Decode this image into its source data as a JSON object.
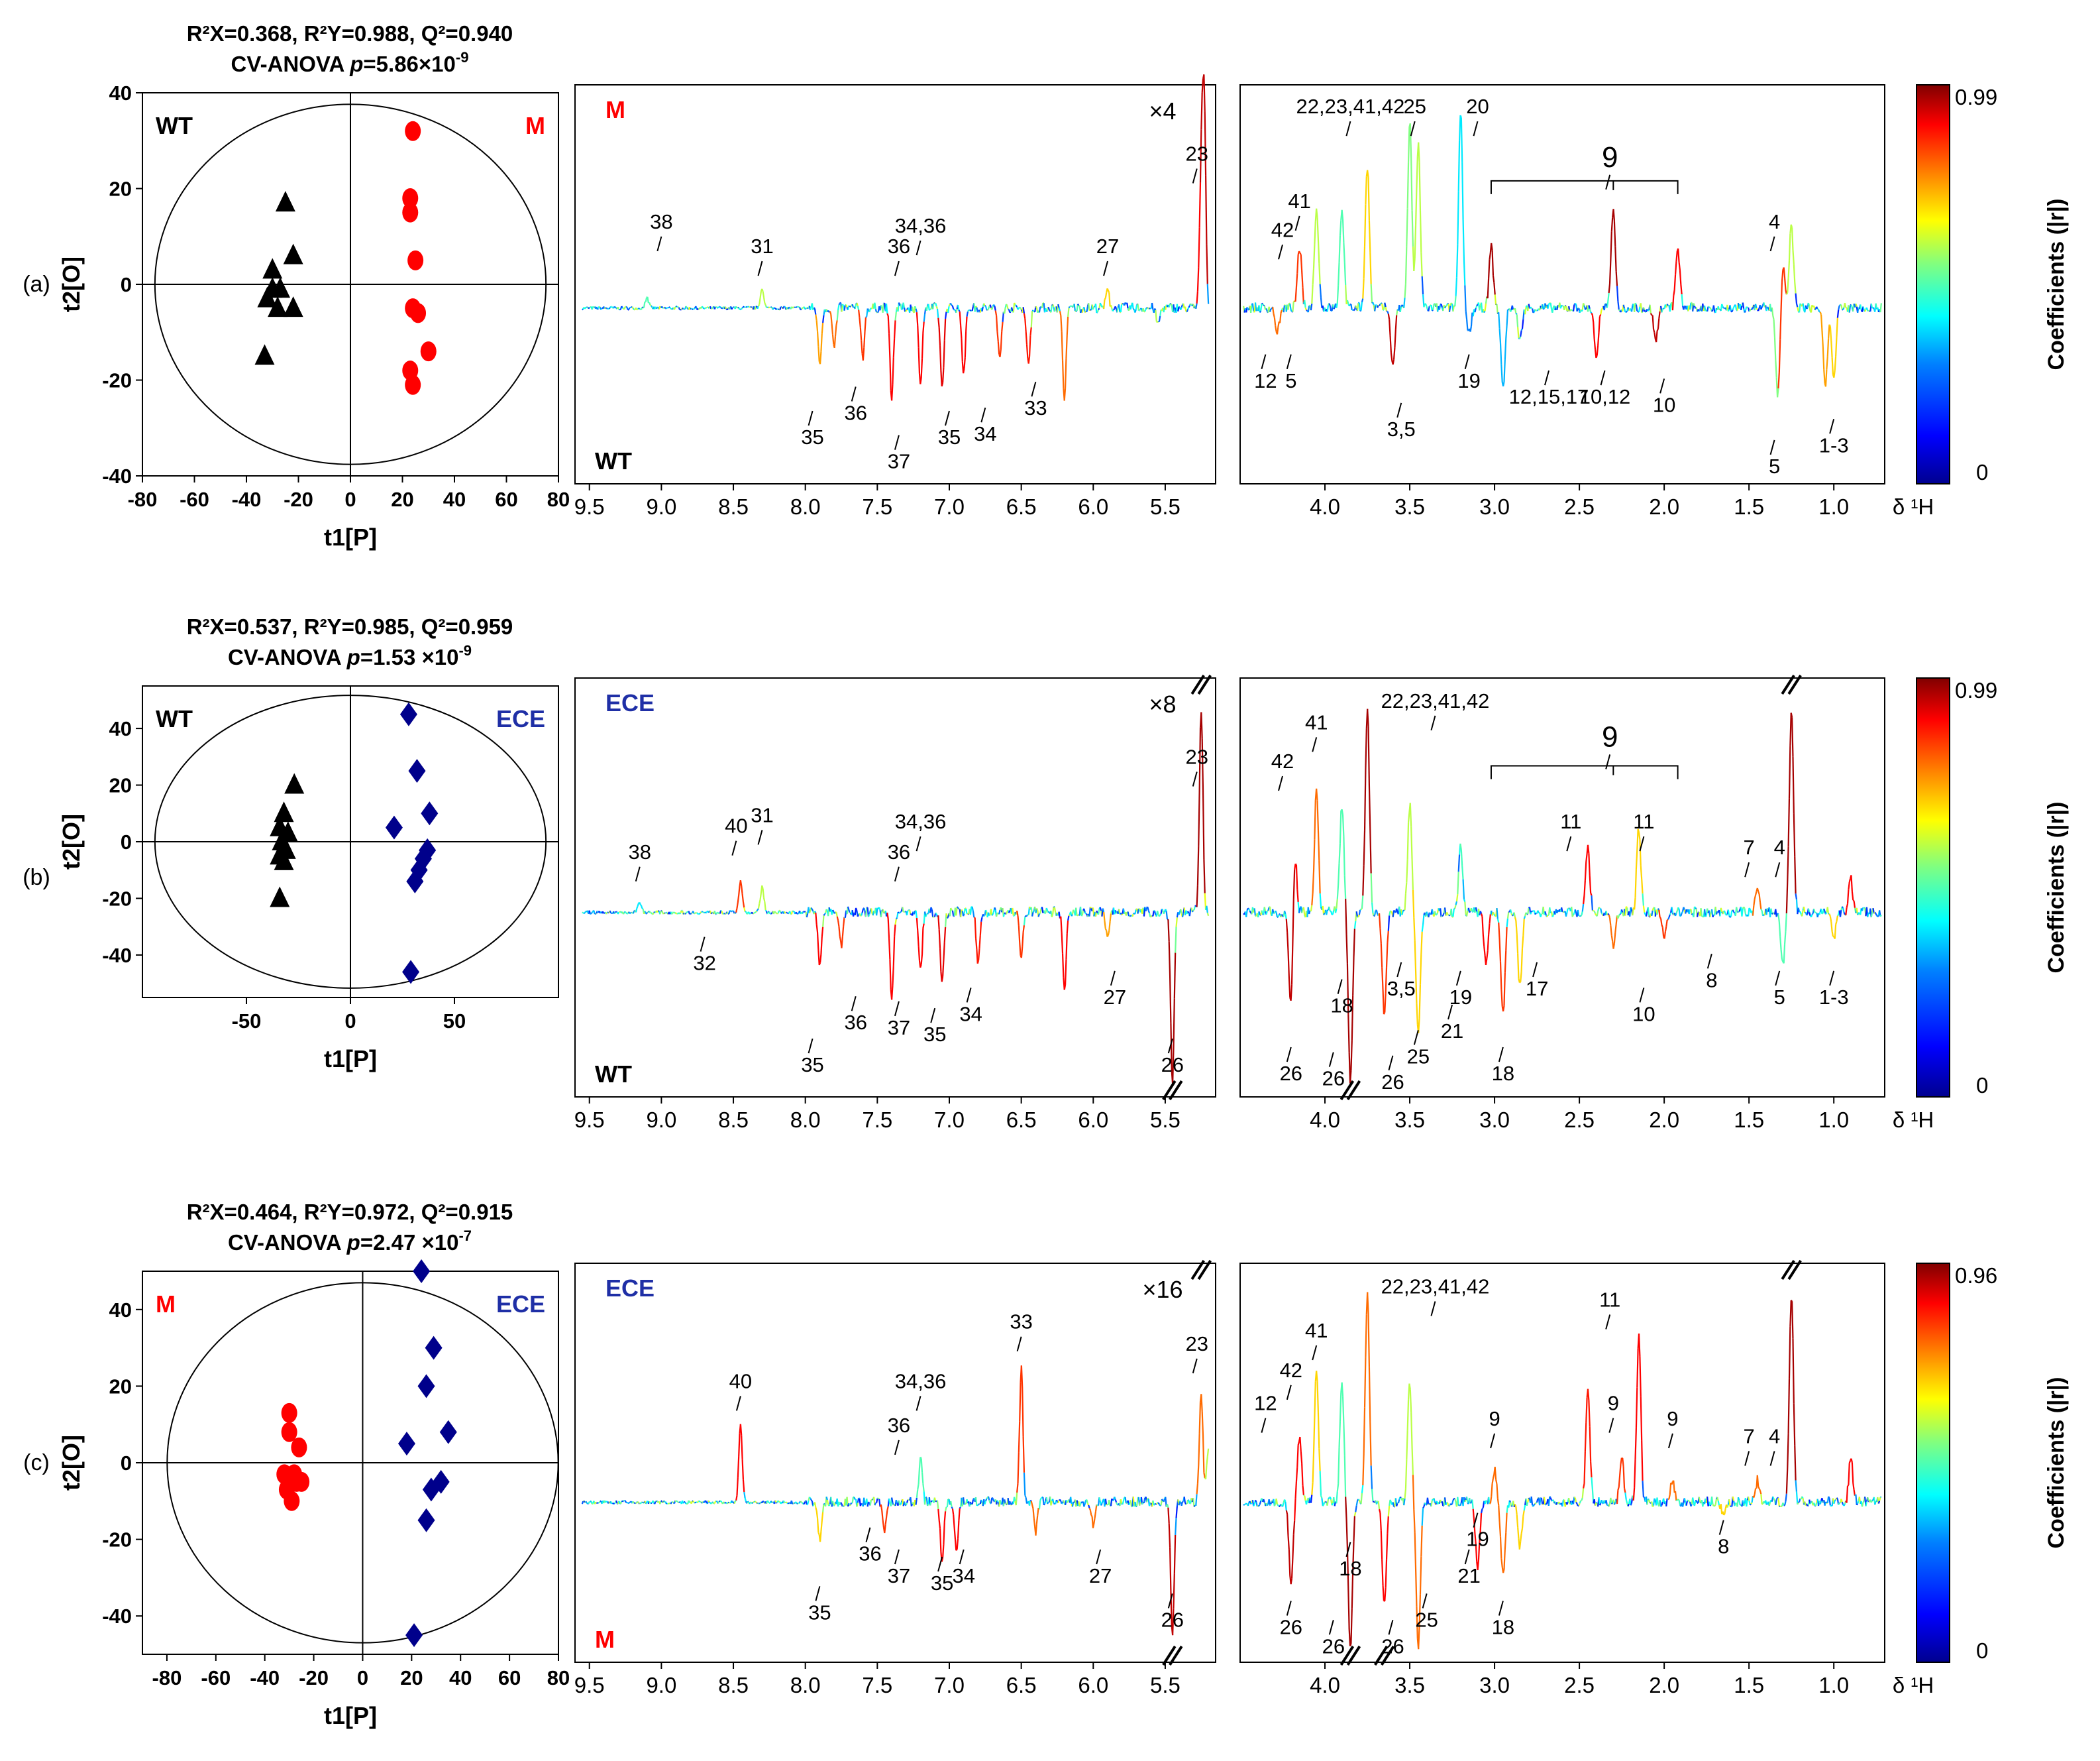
{
  "colors": {
    "group_WT": "#000000",
    "group_M": "#ff0000",
    "group_ECE": "#00008b",
    "label_M": "#ff0000",
    "label_ECE": "#1f2fa6",
    "colorbar_stops": [
      "#00008f",
      "#0000ff",
      "#0080ff",
      "#00ffff",
      "#80ff80",
      "#ffff00",
      "#ff8000",
      "#ff0000",
      "#800000"
    ]
  },
  "colorbar_title": "Coefficients (|r|)",
  "x_axis_label": "δ ¹H",
  "panels": [
    {
      "id": "a",
      "label": "(a)",
      "stats_line1": "R²X=0.368, R²Y=0.988, Q²=0.940",
      "stats_line2_prefix": "CV-ANOVA ",
      "stats_p": "p",
      "stats_line2_mid": "=5.86×10",
      "stats_exp": "-9",
      "score_plot": {
        "xlabel": "t1[P]",
        "ylabel": "t2[O]",
        "xticks": [
          "-80",
          "-60",
          "-40",
          "-20",
          "0",
          "20",
          "40",
          "60",
          "80"
        ],
        "yticks": [
          "40",
          "20",
          "0",
          "-20",
          "-40"
        ],
        "group_left": "WT",
        "group_right": "M",
        "group_left_color": "#000000",
        "group_right_color": "#ff0000"
      },
      "loadings": {
        "top_group": "M",
        "top_color": "#ff0000",
        "bottom_group": "WT",
        "bottom_color": "#000000",
        "scale": "×4",
        "colorbar_max": "0.99",
        "colorbar_min": "0"
      }
    },
    {
      "id": "b",
      "label": "(b)",
      "stats_line1": "R²X=0.537, R²Y=0.985, Q²=0.959",
      "stats_line2_prefix": "CV-ANOVA ",
      "stats_p": "p",
      "stats_line2_mid": "=1.53 ×10",
      "stats_exp": "-9",
      "score_plot": {
        "xlabel": "t1[P]",
        "ylabel": "t2[O]",
        "xticks": [
          "-50",
          "0",
          "50"
        ],
        "yticks": [
          "40",
          "20",
          "0",
          "-20",
          "-40"
        ],
        "group_left": "WT",
        "group_right": "ECE",
        "group_left_color": "#000000",
        "group_right_color": "#1f2fa6"
      },
      "loadings": {
        "top_group": "ECE",
        "top_color": "#1f2fa6",
        "bottom_group": "WT",
        "bottom_color": "#000000",
        "scale": "×8",
        "colorbar_max": "0.99",
        "colorbar_min": "0"
      }
    },
    {
      "id": "c",
      "label": "(c)",
      "stats_line1": "R²X=0.464, R²Y=0.972, Q²=0.915",
      "stats_line2_prefix": "CV-ANOVA ",
      "stats_p": "p",
      "stats_line2_mid": "=2.47 ×10",
      "stats_exp": "-7",
      "score_plot": {
        "xlabel": "t1[P]",
        "ylabel": "t2[O]",
        "xticks": [
          "-80",
          "-60",
          "-40",
          "-20",
          "0",
          "20",
          "40",
          "60",
          "80"
        ],
        "yticks": [
          "40",
          "20",
          "0",
          "-20",
          "-40"
        ],
        "group_left": "M",
        "group_right": "ECE",
        "group_left_color": "#ff0000",
        "group_right_color": "#1f2fa6"
      },
      "loadings": {
        "top_group": "ECE",
        "top_color": "#1f2fa6",
        "bottom_group": "M",
        "bottom_color": "#ff0000",
        "scale": "×16",
        "colorbar_max": "0.96",
        "colorbar_min": "0"
      }
    }
  ],
  "chart_data": [
    {
      "type": "scatter",
      "panel": "a",
      "title": "R²X=0.368, R²Y=0.988, Q²=0.940; CV-ANOVA p=5.86×10-9",
      "xlabel": "t1[P]",
      "ylabel": "t2[O]",
      "xlim": [
        -80,
        80
      ],
      "ylim": [
        -40,
        40
      ],
      "series": [
        {
          "name": "WT",
          "marker": "triangle",
          "color": "#000000",
          "points": [
            [
              -25,
              17
            ],
            [
              -22,
              6
            ],
            [
              -30,
              3
            ],
            [
              -27,
              -1
            ],
            [
              -32,
              -3
            ],
            [
              -22,
              -5
            ],
            [
              -28,
              -5
            ],
            [
              -33,
              -15
            ],
            [
              -30,
              -1
            ]
          ]
        },
        {
          "name": "M",
          "marker": "circle",
          "color": "#ff0000",
          "points": [
            [
              24,
              32
            ],
            [
              23,
              18
            ],
            [
              23,
              15
            ],
            [
              25,
              5
            ],
            [
              24,
              -5
            ],
            [
              26,
              -6
            ],
            [
              30,
              -14
            ],
            [
              23,
              -18
            ],
            [
              24,
              -21
            ]
          ]
        }
      ]
    },
    {
      "type": "scatter",
      "panel": "b",
      "title": "R²X=0.537, R²Y=0.985, Q²=0.959; CV-ANOVA p=1.53 ×10-9",
      "xlabel": "t1[P]",
      "ylabel": "t2[O]",
      "xlim": [
        -100,
        100
      ],
      "ylim": [
        -55,
        55
      ],
      "series": [
        {
          "name": "WT",
          "marker": "triangle",
          "color": "#000000",
          "points": [
            [
              -27,
              20
            ],
            [
              -32,
              10
            ],
            [
              -34,
              5
            ],
            [
              -30,
              3
            ],
            [
              -33,
              0
            ],
            [
              -31,
              -3
            ],
            [
              -34,
              -5
            ],
            [
              -32,
              -7
            ],
            [
              -34,
              -20
            ]
          ]
        },
        {
          "name": "ECE",
          "marker": "diamond",
          "color": "#00008b",
          "points": [
            [
              28,
              45
            ],
            [
              32,
              25
            ],
            [
              38,
              10
            ],
            [
              21,
              5
            ],
            [
              37,
              -3
            ],
            [
              35,
              -6
            ],
            [
              33,
              -10
            ],
            [
              31,
              -14
            ],
            [
              29,
              -46
            ]
          ]
        }
      ]
    },
    {
      "type": "scatter",
      "panel": "c",
      "title": "R²X=0.464, R²Y=0.972, Q²=0.915; CV-ANOVA p=2.47 ×10-7",
      "xlabel": "t1[P]",
      "ylabel": "t2[O]",
      "xlim": [
        -90,
        80
      ],
      "ylim": [
        -50,
        50
      ],
      "series": [
        {
          "name": "M",
          "marker": "circle",
          "color": "#ff0000",
          "points": [
            [
              -30,
              13
            ],
            [
              -26,
              4
            ],
            [
              -32,
              -3
            ],
            [
              -28,
              -3
            ],
            [
              -25,
              -5
            ],
            [
              -31,
              -7
            ],
            [
              -29,
              -10
            ],
            [
              -27,
              -5
            ],
            [
              -30,
              8
            ]
          ]
        },
        {
          "name": "ECE",
          "marker": "diamond",
          "color": "#00008b",
          "points": [
            [
              24,
              50
            ],
            [
              29,
              30
            ],
            [
              26,
              20
            ],
            [
              35,
              8
            ],
            [
              18,
              5
            ],
            [
              32,
              -5
            ],
            [
              28,
              -7
            ],
            [
              26,
              -15
            ],
            [
              21,
              -45
            ]
          ]
        }
      ]
    },
    {
      "type": "line",
      "panel": "a",
      "xlabel": "δ ¹H",
      "xlim_left": [
        9.6,
        5.15
      ],
      "xlim_right": [
        4.5,
        0.7
      ],
      "peaks": [
        {
          "x": 9.1,
          "y": 0.05,
          "c": 0.5
        },
        {
          "x": 8.3,
          "y": 0.1,
          "c": 0.6
        },
        {
          "x": 7.9,
          "y": -0.35,
          "c": 0.75
        },
        {
          "x": 7.8,
          "y": -0.25,
          "c": 0.8
        },
        {
          "x": 7.6,
          "y": -0.3,
          "c": 0.85
        },
        {
          "x": 7.4,
          "y": -0.55,
          "c": 0.9
        },
        {
          "x": 7.2,
          "y": -0.45,
          "c": 0.9
        },
        {
          "x": 7.05,
          "y": -0.5,
          "c": 0.92
        },
        {
          "x": 6.9,
          "y": -0.4,
          "c": 0.9
        },
        {
          "x": 6.65,
          "y": -0.3,
          "c": 0.85
        },
        {
          "x": 6.45,
          "y": -0.35,
          "c": 0.88
        },
        {
          "x": 6.2,
          "y": -0.55,
          "c": 0.8
        },
        {
          "x": 5.9,
          "y": 0.08,
          "c": 0.7
        },
        {
          "x": 5.55,
          "y": -0.1,
          "c": 0.1
        },
        {
          "x": 5.23,
          "y": 0.95,
          "c": 0.95
        },
        {
          "x": 5.25,
          "y": 0.6,
          "c": 0.9
        },
        {
          "x": 4.28,
          "y": -0.15,
          "c": 0.8
        },
        {
          "x": 4.15,
          "y": 0.3,
          "c": 0.85
        },
        {
          "x": 4.05,
          "y": 0.5,
          "c": 0.6
        },
        {
          "x": 3.9,
          "y": 0.5,
          "c": 0.5
        },
        {
          "x": 3.75,
          "y": 0.7,
          "c": 0.7
        },
        {
          "x": 3.6,
          "y": -0.35,
          "c": 0.95
        },
        {
          "x": 3.5,
          "y": 0.9,
          "c": 0.55
        },
        {
          "x": 3.45,
          "y": 0.8,
          "c": 0.6
        },
        {
          "x": 3.2,
          "y": 0.95,
          "c": 0.4
        },
        {
          "x": 3.15,
          "y": -0.15,
          "c": 0.3
        },
        {
          "x": 3.02,
          "y": 0.3,
          "c": 0.97
        },
        {
          "x": 2.95,
          "y": -0.5,
          "c": 0.35
        },
        {
          "x": 2.85,
          "y": -0.2,
          "c": 0.2
        },
        {
          "x": 2.4,
          "y": -0.3,
          "c": 0.9
        },
        {
          "x": 2.3,
          "y": 0.5,
          "c": 0.97
        },
        {
          "x": 2.05,
          "y": -0.2,
          "c": 0.95
        },
        {
          "x": 1.92,
          "y": 0.3,
          "c": 0.9
        },
        {
          "x": 1.33,
          "y": -0.55,
          "c": 0.55
        },
        {
          "x": 1.3,
          "y": 0.2,
          "c": 0.85
        },
        {
          "x": 1.25,
          "y": 0.4,
          "c": 0.6
        },
        {
          "x": 1.05,
          "y": -0.5,
          "c": 0.75
        },
        {
          "x": 1.0,
          "y": -0.45,
          "c": 0.7
        }
      ],
      "annotations": [
        "38",
        "31",
        "36",
        "34,36",
        "27",
        "23",
        "35",
        "36",
        "37",
        "35",
        "34",
        "33",
        "22,23,41,42",
        "25",
        "20",
        "41",
        "42",
        "9",
        "4",
        "12",
        "5",
        "3,5",
        "19",
        "12,15,17",
        "10,12",
        "10",
        "5",
        "1-3"
      ]
    },
    {
      "type": "line",
      "panel": "b",
      "xlabel": "δ ¹H",
      "xlim_left": [
        9.6,
        5.15
      ],
      "xlim_right": [
        4.5,
        0.7
      ],
      "peaks": [
        {
          "x": 9.15,
          "y": 0.05,
          "c": 0.4
        },
        {
          "x": 8.45,
          "y": 0.15,
          "c": 0.85
        },
        {
          "x": 8.3,
          "y": 0.12,
          "c": 0.6
        },
        {
          "x": 7.9,
          "y": -0.3,
          "c": 0.9
        },
        {
          "x": 7.75,
          "y": -0.2,
          "c": 0.85
        },
        {
          "x": 7.4,
          "y": -0.5,
          "c": 0.9
        },
        {
          "x": 7.2,
          "y": -0.35,
          "c": 0.9
        },
        {
          "x": 7.05,
          "y": -0.4,
          "c": 0.92
        },
        {
          "x": 6.8,
          "y": -0.3,
          "c": 0.88
        },
        {
          "x": 6.5,
          "y": -0.25,
          "c": 0.85
        },
        {
          "x": 6.2,
          "y": -0.45,
          "c": 0.9
        },
        {
          "x": 5.9,
          "y": -0.15,
          "c": 0.75
        },
        {
          "x": 5.45,
          "y": -1.0,
          "c": 0.97
        },
        {
          "x": 5.25,
          "y": 0.95,
          "c": 0.97
        },
        {
          "x": 4.18,
          "y": 0.35,
          "c": 0.9
        },
        {
          "x": 4.2,
          "y": -0.6,
          "c": 0.95
        },
        {
          "x": 4.05,
          "y": 0.55,
          "c": 0.8
        },
        {
          "x": 3.9,
          "y": 0.5,
          "c": 0.5
        },
        {
          "x": 3.85,
          "y": -1.0,
          "c": 0.97
        },
        {
          "x": 3.75,
          "y": 0.95,
          "c": 0.97
        },
        {
          "x": 3.65,
          "y": -0.6,
          "c": 0.85
        },
        {
          "x": 3.5,
          "y": 0.5,
          "c": 0.6
        },
        {
          "x": 3.45,
          "y": -0.7,
          "c": 0.7
        },
        {
          "x": 3.2,
          "y": 0.3,
          "c": 0.2
        },
        {
          "x": 3.05,
          "y": -0.3,
          "c": 0.9
        },
        {
          "x": 2.95,
          "y": -0.6,
          "c": 0.85
        },
        {
          "x": 2.85,
          "y": -0.45,
          "c": 0.7
        },
        {
          "x": 2.45,
          "y": 0.3,
          "c": 0.9
        },
        {
          "x": 2.3,
          "y": -0.2,
          "c": 0.8
        },
        {
          "x": 2.15,
          "y": 0.4,
          "c": 0.7
        },
        {
          "x": 2.0,
          "y": -0.15,
          "c": 0.85
        },
        {
          "x": 1.45,
          "y": 0.1,
          "c": 0.8
        },
        {
          "x": 1.3,
          "y": -0.3,
          "c": 0.5
        },
        {
          "x": 1.25,
          "y": 0.95,
          "c": 0.97
        },
        {
          "x": 1.0,
          "y": -0.15,
          "c": 0.7
        },
        {
          "x": 0.9,
          "y": 0.15,
          "c": 0.9
        }
      ],
      "annotations": [
        "38",
        "40",
        "31",
        "34,36",
        "36",
        "27",
        "23",
        "32",
        "36",
        "37",
        "35",
        "34",
        "35",
        "26",
        "22,23,41,42",
        "41",
        "42",
        "9",
        "11",
        "11",
        "7",
        "4",
        "18",
        "3,5",
        "19",
        "17",
        "21",
        "8",
        "5",
        "1-3",
        "26",
        "26",
        "26",
        "25",
        "18",
        "10"
      ]
    },
    {
      "type": "line",
      "panel": "c",
      "xlabel": "δ ¹H",
      "xlim_left": [
        9.6,
        5.15
      ],
      "xlim_right": [
        4.5,
        0.7
      ],
      "peaks": [
        {
          "x": 8.45,
          "y": 0.35,
          "c": 0.9
        },
        {
          "x": 7.9,
          "y": -0.25,
          "c": 0.7
        },
        {
          "x": 7.45,
          "y": -0.2,
          "c": 0.85
        },
        {
          "x": 7.2,
          "y": 0.2,
          "c": 0.5
        },
        {
          "x": 7.05,
          "y": -0.4,
          "c": 0.9
        },
        {
          "x": 6.95,
          "y": -0.35,
          "c": 0.9
        },
        {
          "x": 6.5,
          "y": 0.6,
          "c": 0.85
        },
        {
          "x": 6.4,
          "y": -0.2,
          "c": 0.8
        },
        {
          "x": 6.0,
          "y": -0.15,
          "c": 0.8
        },
        {
          "x": 5.45,
          "y": -0.9,
          "c": 0.95
        },
        {
          "x": 5.25,
          "y": 0.5,
          "c": 0.8
        },
        {
          "x": 5.2,
          "y": 0.25,
          "c": 0.6
        },
        {
          "x": 4.2,
          "y": -0.55,
          "c": 0.95
        },
        {
          "x": 4.15,
          "y": 0.3,
          "c": 0.9
        },
        {
          "x": 4.05,
          "y": 0.6,
          "c": 0.7
        },
        {
          "x": 3.9,
          "y": 0.55,
          "c": 0.5
        },
        {
          "x": 3.85,
          "y": -1.0,
          "c": 0.97
        },
        {
          "x": 3.75,
          "y": 0.95,
          "c": 0.8
        },
        {
          "x": 3.65,
          "y": -0.7,
          "c": 0.9
        },
        {
          "x": 3.5,
          "y": 0.55,
          "c": 0.6
        },
        {
          "x": 3.45,
          "y": -1.0,
          "c": 0.8
        },
        {
          "x": 3.1,
          "y": -0.45,
          "c": 0.9
        },
        {
          "x": 3.0,
          "y": 0.15,
          "c": 0.8
        },
        {
          "x": 2.95,
          "y": -0.5,
          "c": 0.8
        },
        {
          "x": 2.85,
          "y": -0.3,
          "c": 0.7
        },
        {
          "x": 2.45,
          "y": 0.5,
          "c": 0.88
        },
        {
          "x": 2.25,
          "y": 0.2,
          "c": 0.85
        },
        {
          "x": 2.15,
          "y": 0.75,
          "c": 0.9
        },
        {
          "x": 1.95,
          "y": 0.1,
          "c": 0.8
        },
        {
          "x": 1.65,
          "y": -0.08,
          "c": 0.7
        },
        {
          "x": 1.45,
          "y": 0.1,
          "c": 0.8
        },
        {
          "x": 1.25,
          "y": 0.95,
          "c": 0.97
        },
        {
          "x": 0.9,
          "y": 0.2,
          "c": 0.9
        }
      ],
      "annotations": [
        "40",
        "33",
        "34,36",
        "36",
        "23",
        "35",
        "36",
        "37",
        "35",
        "34",
        "27",
        "26",
        "22,23,41,42",
        "41",
        "42",
        "12",
        "9",
        "11",
        "9",
        "9",
        "7",
        "4",
        "19",
        "18",
        "21",
        "8",
        "26",
        "26",
        "26",
        "25",
        "18"
      ]
    }
  ]
}
